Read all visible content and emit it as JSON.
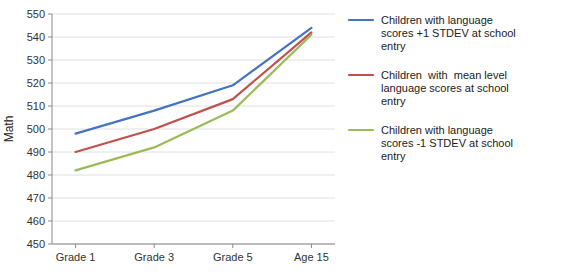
{
  "chart_data": {
    "type": "line",
    "categories": [
      "Grade 1",
      "Grade 3",
      "Grade 5",
      "Age 15"
    ],
    "series": [
      {
        "name": "Children with language\nscores +1 STDEV at school\nentry",
        "color": "#4472C4",
        "values": [
          498,
          508,
          519,
          544
        ]
      },
      {
        "name": "Children  with  mean level\nlanguage scores at school\nentry",
        "color": "#C0504D",
        "values": [
          490,
          500,
          513,
          542
        ]
      },
      {
        "name": "Children with language\nscores -1 STDEV at school\nentry",
        "color": "#9BBB59",
        "values": [
          482,
          492,
          508,
          541
        ]
      }
    ],
    "y_label": "Math",
    "ylim": [
      450,
      550
    ],
    "yticks": [
      450,
      460,
      470,
      480,
      490,
      500,
      510,
      520,
      530,
      540,
      550
    ],
    "grid": true,
    "legend": "right"
  }
}
